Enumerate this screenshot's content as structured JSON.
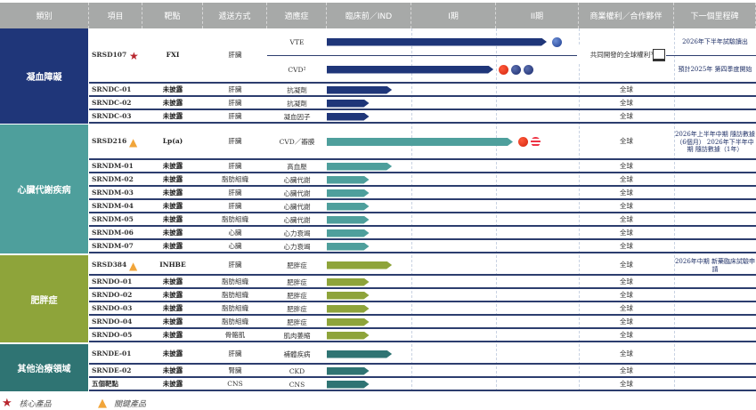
{
  "header": [
    "類別",
    "項目",
    "靶點",
    "遞送方式",
    "適應症",
    "臨床前／IND",
    "I期",
    "II期",
    "商業權利／合作夥伴",
    "下一個里程碑"
  ],
  "phase_scale_note": "progress in phases completed (0-3: preclinical, I, II)",
  "colors": {
    "navy": "#1f3679",
    "teal": "#4e9f9c",
    "olive": "#8ea43a",
    "darkteal": "#2f7473",
    "header": "#a7a9a8",
    "star": "#b8262e",
    "triangle": "#f1a53a"
  },
  "groups": [
    {
      "name": "凝血障礙",
      "color": "#1f3679",
      "rows": [
        {
          "project": "SRSD107",
          "badge": "star",
          "target": "FXI",
          "delivery": "肝臟",
          "indications": [
            {
              "name": "VTE",
              "progress": 2.6,
              "flags": [
                "flag-eu"
              ],
              "milestone": "2026年下半年試驗讀出"
            },
            {
              "name": "CVD²",
              "progress": 1.97,
              "flags": [
                "flag-cn",
                "flag-uk",
                "flag-au"
              ],
              "milestone": "預計2025年 第四季度開始"
            }
          ],
          "rights": "共同開發的全球權利³"
        },
        {
          "project": "SRNDC-01",
          "target": "未披露",
          "delivery": "肝臟",
          "indication": "抗凝劑",
          "progress": 0.77,
          "rights": "全球"
        },
        {
          "project": "SRNDC-02",
          "target": "未披露",
          "delivery": "肝臟",
          "indication": "抗凝劑",
          "progress": 0.5,
          "rights": "全球"
        },
        {
          "project": "SRNDC-03",
          "target": "未披露",
          "delivery": "肝臟",
          "indication": "凝血因子",
          "progress": 0.5,
          "rights": "全球"
        }
      ]
    },
    {
      "name": "心臟代謝疾病",
      "color": "#4e9f9c",
      "rows": [
        {
          "project": "SRSD216",
          "badge": "triangle",
          "target": "Lp(a)",
          "delivery": "肝臟",
          "indication": "CVD／瓣膜",
          "progress": 2.2,
          "flags": [
            "flag-cn",
            "flag-us"
          ],
          "rights": "全球",
          "milestone": "2026年上半年中期 隨訪數據（6個月） 2026年下半年中期 隨訪數據（1年）"
        },
        {
          "project": "SRNDM-01",
          "target": "未披露",
          "delivery": "肝臟",
          "indication": "高血壓",
          "progress": 0.77,
          "rights": "全球"
        },
        {
          "project": "SRNDM-02",
          "target": "未披露",
          "delivery": "脂肪組織",
          "indication": "心臟代謝",
          "progress": 0.5,
          "rights": "全球"
        },
        {
          "project": "SRNDM-03",
          "target": "未披露",
          "delivery": "肝臟",
          "indication": "心臟代謝",
          "progress": 0.5,
          "rights": "全球"
        },
        {
          "project": "SRNDM-04",
          "target": "未披露",
          "delivery": "肝臟",
          "indication": "心臟代謝",
          "progress": 0.5,
          "rights": "全球"
        },
        {
          "project": "SRNDM-05",
          "target": "未披露",
          "delivery": "脂肪組織",
          "indication": "心臟代謝",
          "progress": 0.5,
          "rights": "全球"
        },
        {
          "project": "SRNDM-06",
          "target": "未披露",
          "delivery": "心臟",
          "indication": "心力衰竭",
          "progress": 0.5,
          "rights": "全球"
        },
        {
          "project": "SRNDM-07",
          "target": "未披露",
          "delivery": "心臟",
          "indication": "心力衰竭",
          "progress": 0.5,
          "rights": "全球"
        }
      ]
    },
    {
      "name": "肥胖症",
      "color": "#8ea43a",
      "rows": [
        {
          "project": "SRSD384",
          "badge": "triangle",
          "target": "INHBE",
          "delivery": "肝臟",
          "indication": "肥胖症",
          "progress": 0.77,
          "rights": "全球",
          "milestone": "2026年中期 新藥臨床試驗申請"
        },
        {
          "project": "SRNDO-01",
          "target": "未披露",
          "delivery": "脂肪組織",
          "indication": "肥胖症",
          "progress": 0.5,
          "rights": "全球"
        },
        {
          "project": "SRNDO-02",
          "target": "未披露",
          "delivery": "脂肪組織",
          "indication": "肥胖症",
          "progress": 0.5,
          "rights": "全球"
        },
        {
          "project": "SRNDO-03",
          "target": "未披露",
          "delivery": "脂肪組織",
          "indication": "肥胖症",
          "progress": 0.5,
          "rights": "全球"
        },
        {
          "project": "SRNDO-04",
          "target": "未披露",
          "delivery": "脂肪組織",
          "indication": "肥胖症",
          "progress": 0.5,
          "rights": "全球"
        },
        {
          "project": "SRNDO-05",
          "target": "未披露",
          "delivery": "骨骼肌",
          "indication": "肌肉萎縮",
          "progress": 0.5,
          "rights": "全球"
        }
      ]
    },
    {
      "name": "其他治療領域",
      "color": "#2f7473",
      "rows": [
        {
          "project": "SRNDE-01",
          "target": "未披露",
          "delivery": "肝臟",
          "indication": "補體疾病",
          "progress": 0.77,
          "rights": "全球"
        },
        {
          "project": "SRNDE-02",
          "target": "未披露",
          "delivery": "腎臟",
          "indication": "CKD",
          "progress": 0.5,
          "rights": "全球"
        },
        {
          "project": "五個靶點",
          "target": "未披露",
          "delivery": "CNS",
          "indication": "CNS",
          "progress": 0.5,
          "rights": "全球"
        }
      ]
    }
  ],
  "legend": {
    "star": "核心產品",
    "triangle": "關鍵產品"
  }
}
